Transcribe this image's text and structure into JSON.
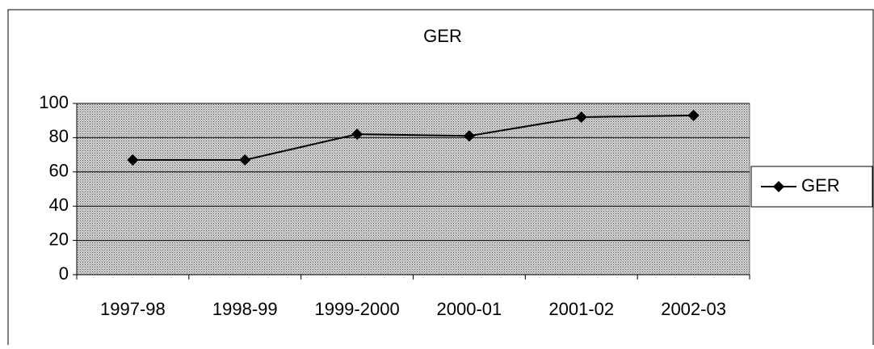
{
  "chart_data": {
    "type": "line",
    "title": "GER",
    "categories": [
      "1997-98",
      "1998-99",
      "1999-2000",
      "2000-01",
      "2001-02",
      "2002-03"
    ],
    "series": [
      {
        "name": "GER",
        "color": "#000000",
        "values": [
          67,
          67,
          82,
          81,
          92,
          93
        ]
      }
    ],
    "ylim": [
      0,
      100
    ],
    "yticks": [
      0,
      20,
      40,
      60,
      80,
      100
    ],
    "grid": true,
    "legend": "right"
  }
}
